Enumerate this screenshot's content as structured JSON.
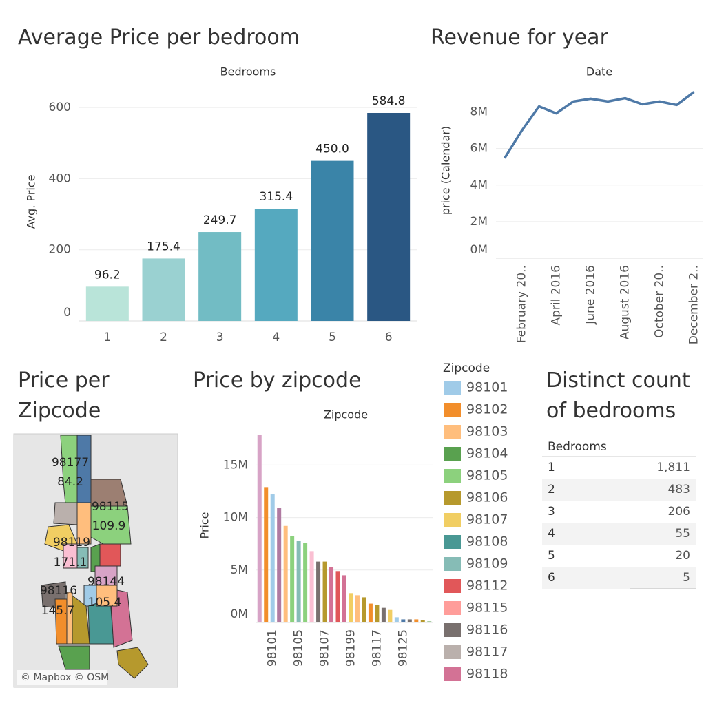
{
  "chart_data": [
    {
      "type": "bar",
      "title": "Average Price per bedroom",
      "x_label": "Bedrooms",
      "y_label": "Avg. Price",
      "categories": [
        "1",
        "2",
        "3",
        "4",
        "5",
        "6"
      ],
      "values": [
        96.2,
        175.4,
        249.7,
        315.4,
        450.0,
        584.8
      ],
      "value_labels": [
        "96.2",
        "175.4",
        "249.7",
        "315.4",
        "450.0",
        "584.8"
      ],
      "colors": [
        "#b9e4d9",
        "#9ad1d1",
        "#72bcc4",
        "#55a9bf",
        "#3a84a8",
        "#2a5783"
      ],
      "ylim": [
        0,
        670
      ],
      "yticks": [
        0,
        200,
        400,
        600
      ],
      "grid": true
    },
    {
      "type": "line",
      "title": "Revenue for year",
      "x_label": "Date",
      "y_label": "price (Calendar)",
      "categories": [
        null,
        "February 20..",
        null,
        "April 2016",
        null,
        "June 2016",
        null,
        "August 2016",
        null,
        "October 20..",
        null,
        "December 2.."
      ],
      "values": [
        5470000,
        6980000,
        8300000,
        7920000,
        8570000,
        8720000,
        8570000,
        8750000,
        8420000,
        8570000,
        8380000,
        9090000
      ],
      "color": "#4e79a7",
      "ylim": [
        0,
        9600000
      ],
      "yticks": [
        {
          "value": 0,
          "label": "0M"
        },
        {
          "value": 2000000,
          "label": "2M"
        },
        {
          "value": 4000000,
          "label": "4M"
        },
        {
          "value": 6000000,
          "label": "6M"
        },
        {
          "value": 8000000,
          "label": "8M"
        }
      ],
      "grid": true
    },
    {
      "type": "bar",
      "title": "Price by zipcode",
      "x_label": "Zipcode",
      "y_label": "Price",
      "categories": [
        null,
        null,
        "98101",
        null,
        null,
        null,
        "98105",
        null,
        null,
        null,
        "98107",
        null,
        null,
        null,
        "98199",
        null,
        null,
        null,
        "98117",
        null,
        null,
        null,
        "98125",
        null,
        null,
        null,
        null
      ],
      "values": [
        17900000,
        12900000,
        12200000,
        10900000,
        9200000,
        8200000,
        7800000,
        7600000,
        6800000,
        5800000,
        5800000,
        5300000,
        4900000,
        4500000,
        2800000,
        2600000,
        2400000,
        1800000,
        1700000,
        1400000,
        1200000,
        500000,
        300000,
        300000,
        300000,
        200000,
        100000
      ],
      "colors": [
        "#d7a3c6",
        "#f28e2b",
        "#a0cbe8",
        "#b07aa1",
        "#ffbe7d",
        "#8cd17d",
        "#86bcb6",
        "#8cd17d",
        "#fabfd2",
        "#79706e",
        "#b6992d",
        "#d37295",
        "#e15759",
        "#d37295",
        "#f1ce63",
        "#ffbe7d",
        "#b6992d",
        "#f28e2b",
        "#b6992d",
        "#79706e",
        "#f1ce63",
        "#a0cbe8",
        "#4e79a7",
        "#79706e",
        "#f28e2b",
        "#b6992d",
        "#59a14f"
      ],
      "ylim": [
        0,
        18500000
      ],
      "yticks": [
        {
          "value": 0,
          "label": "0M"
        },
        {
          "value": 5000000,
          "label": "5M"
        },
        {
          "value": 10000000,
          "label": "10M"
        },
        {
          "value": 15000000,
          "label": "15M"
        }
      ],
      "grid": true,
      "legend": {
        "title": "Zipcode",
        "items": [
          {
            "name": "98101",
            "color": "#a0cbe8"
          },
          {
            "name": "98102",
            "color": "#f28e2b"
          },
          {
            "name": "98103",
            "color": "#ffbe7d"
          },
          {
            "name": "98104",
            "color": "#59a14f"
          },
          {
            "name": "98105",
            "color": "#8cd17d"
          },
          {
            "name": "98106",
            "color": "#b6992d"
          },
          {
            "name": "98107",
            "color": "#f1ce63"
          },
          {
            "name": "98108",
            "color": "#499894"
          },
          {
            "name": "98109",
            "color": "#86bcb6"
          },
          {
            "name": "98112",
            "color": "#e15759"
          },
          {
            "name": "98115",
            "color": "#ff9d9a"
          },
          {
            "name": "98116",
            "color": "#79706e"
          },
          {
            "name": "98117",
            "color": "#bab0ac"
          },
          {
            "name": "98118",
            "color": "#d37295"
          }
        ]
      }
    }
  ],
  "map": {
    "title_lines": [
      "Price per",
      "Zipcode"
    ],
    "credit": "© Mapbox © OSM",
    "labels": [
      {
        "zipcode": "98177",
        "value": "84.2"
      },
      {
        "zipcode": "98115",
        "value": "109.9"
      },
      {
        "zipcode": "98119",
        "value": "171.1"
      },
      {
        "zipcode": "98144",
        "value": "105.4"
      },
      {
        "zipcode": "98116",
        "value": "145.7"
      }
    ]
  },
  "table": {
    "title_lines": [
      "Distinct count",
      "of bedrooms"
    ],
    "header": "Bedrooms",
    "rows": [
      [
        "1",
        "1,811"
      ],
      [
        "2",
        "483"
      ],
      [
        "3",
        "206"
      ],
      [
        "4",
        "55"
      ],
      [
        "5",
        "20"
      ],
      [
        "6",
        "5"
      ]
    ]
  }
}
